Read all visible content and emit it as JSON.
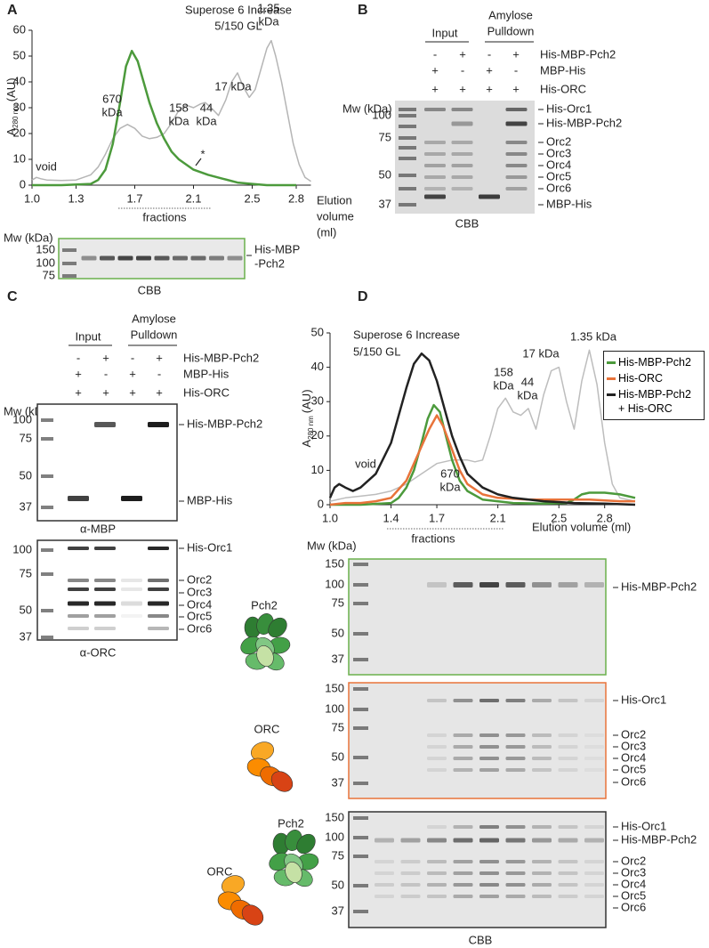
{
  "panel_labels": [
    "A",
    "B",
    "C",
    "D"
  ],
  "chart_data": [
    {
      "type": "line",
      "title": [
        "Superose 6 Increase",
        "5/150 GL"
      ],
      "ylabel": {
        "main": "A",
        "sub": "280 nm",
        "unit": "(AU)"
      },
      "xlabel": [
        "Elution",
        "volume",
        "(ml)"
      ],
      "xlim": [
        1.0,
        2.9
      ],
      "ylim": [
        0,
        60
      ],
      "xticks": [
        {
          "value": 1.0,
          "label": "1.0"
        },
        1.3,
        1.7,
        2.1,
        2.5,
        2.8
      ],
      "yticks": [
        0,
        10,
        20,
        30,
        40,
        50,
        60
      ],
      "annotations": [
        [
          "void"
        ],
        [
          "670",
          "kDa"
        ],
        [
          "158",
          "kDa"
        ],
        [
          "44",
          "kDa"
        ],
        [
          "17 kDa"
        ],
        [
          "1.35",
          "kDa"
        ],
        [
          "*"
        ]
      ],
      "fractions_label": "fractions",
      "series": [
        {
          "color": "#b5b5b5",
          "x": [
            1.0,
            1.03,
            1.06,
            1.1,
            1.2,
            1.3,
            1.4,
            1.45,
            1.5,
            1.55,
            1.6,
            1.65,
            1.7,
            1.75,
            1.8,
            1.85,
            1.9,
            1.95,
            2.0,
            2.05,
            2.1,
            2.15,
            2.18,
            2.22,
            2.27,
            2.32,
            2.36,
            2.4,
            2.44,
            2.48,
            2.52,
            2.56,
            2.6,
            2.63,
            2.66,
            2.7,
            2.74,
            2.78,
            2.82,
            2.86,
            2.9
          ],
          "values": [
            2,
            3,
            2.5,
            2,
            1.8,
            2,
            4,
            7,
            12,
            18,
            22,
            23.5,
            22,
            19,
            18,
            18.5,
            20,
            24,
            29,
            31,
            30,
            31.5,
            32,
            30,
            27,
            33,
            40,
            43.5,
            38,
            34,
            37,
            45,
            53,
            56,
            50,
            40,
            28,
            16,
            8,
            3,
            1.5
          ]
        },
        {
          "color": "#4c9a3c",
          "x": [
            1.0,
            1.2,
            1.4,
            1.45,
            1.5,
            1.55,
            1.6,
            1.64,
            1.68,
            1.72,
            1.76,
            1.8,
            1.85,
            1.9,
            1.95,
            2.0,
            2.1,
            2.2,
            2.3,
            2.4,
            2.5,
            2.6,
            2.8
          ],
          "values": [
            0,
            0,
            0.5,
            2,
            6,
            16,
            32,
            46,
            52,
            48,
            40,
            32,
            24,
            18,
            13,
            10,
            6,
            4,
            2.5,
            1,
            0.5,
            0,
            0
          ]
        }
      ]
    },
    {
      "type": "line",
      "title": [
        "Superose 6 Increase",
        "5/150 GL"
      ],
      "ylabel": {
        "main": "A",
        "sub": "280 nm",
        "unit": "(AU)"
      },
      "xlabel": [
        "Elution volume (ml)"
      ],
      "xlim": [
        1.0,
        3.0
      ],
      "ylim": [
        0,
        50
      ],
      "xticks": [
        {
          "value": 1.0,
          "label": "1.0"
        },
        1.4,
        1.7,
        2.1,
        2.5,
        2.8
      ],
      "yticks": [
        0,
        10,
        20,
        30,
        40,
        50
      ],
      "annotations": [
        [
          "void"
        ],
        [
          "670",
          "kDa"
        ],
        [
          "158",
          "kDa"
        ],
        [
          "44",
          "kDa"
        ],
        [
          "17 kDa"
        ],
        [
          "1.35 kDa"
        ]
      ],
      "fractions_label": "fractions",
      "legend": "top-right",
      "series": [
        {
          "color": "#bdbdbd",
          "x": [
            1.0,
            1.1,
            1.2,
            1.3,
            1.4,
            1.5,
            1.6,
            1.7,
            1.8,
            1.9,
            1.95,
            2.0,
            2.05,
            2.1,
            2.15,
            2.2,
            2.25,
            2.3,
            2.35,
            2.4,
            2.45,
            2.5,
            2.55,
            2.6,
            2.65,
            2.7,
            2.75,
            2.8,
            2.85,
            2.9,
            3.0
          ],
          "values": [
            1,
            2,
            2.5,
            3,
            4,
            6,
            9,
            12,
            13,
            13,
            12.5,
            13,
            20,
            28,
            31,
            27,
            26,
            28,
            22,
            32,
            39,
            40,
            30,
            22,
            36,
            45,
            35,
            18,
            6,
            2,
            1
          ]
        },
        {
          "name": "His-MBP-Pch2",
          "color": "#4c9a3c",
          "x": [
            1.0,
            1.2,
            1.4,
            1.45,
            1.5,
            1.55,
            1.6,
            1.64,
            1.68,
            1.72,
            1.76,
            1.8,
            1.85,
            1.9,
            2.0,
            2.2,
            2.4,
            2.55,
            2.6,
            2.65,
            2.7,
            2.8,
            2.9,
            3.0
          ],
          "values": [
            0,
            0,
            0.5,
            2,
            5,
            10,
            18,
            25,
            29,
            27,
            20,
            13,
            7,
            4,
            1.5,
            0.5,
            0.3,
            0.5,
            1.5,
            3,
            3.5,
            3.5,
            3,
            2
          ]
        },
        {
          "name": "His-ORC",
          "color": "#e8733a",
          "x": [
            1.0,
            1.1,
            1.2,
            1.3,
            1.4,
            1.5,
            1.55,
            1.6,
            1.65,
            1.7,
            1.74,
            1.8,
            1.85,
            1.9,
            2.0,
            2.1,
            2.3,
            2.5,
            2.7,
            2.9,
            3.0
          ],
          "values": [
            0,
            0.5,
            0.5,
            1,
            2,
            7,
            12,
            17,
            22,
            26,
            23,
            16,
            10,
            6,
            3,
            2,
            1.5,
            1.5,
            1.5,
            1,
            1
          ]
        },
        {
          "name": "His-MBP-Pch2 + His-ORC",
          "color": "#222222",
          "x": [
            1.0,
            1.03,
            1.06,
            1.1,
            1.15,
            1.2,
            1.3,
            1.4,
            1.45,
            1.5,
            1.55,
            1.6,
            1.65,
            1.7,
            1.75,
            1.8,
            1.85,
            1.9,
            2.0,
            2.1,
            2.2,
            2.4,
            2.6,
            2.8,
            3.0
          ],
          "values": [
            2,
            5,
            6,
            5,
            4,
            5,
            9,
            18,
            26,
            34,
            41,
            44,
            42,
            36,
            28,
            20,
            14,
            9,
            5,
            3,
            2,
            1,
            0.5,
            0.3,
            0
          ]
        }
      ]
    }
  ],
  "gel_A": {
    "mw": "Mw (kDa)",
    "markers": [
      150,
      100,
      75
    ],
    "labels": [
      "His-MBP",
      "-Pch2"
    ],
    "caption": "CBB"
  },
  "panel_B": {
    "input": "Input",
    "pulldown": [
      "Amylose",
      "Pulldown"
    ],
    "rows": [
      {
        "name": "His-MBP-Pch2",
        "signs": [
          "-",
          "+",
          "-",
          "+"
        ]
      },
      {
        "name": "MBP-His",
        "signs": [
          "+",
          "-",
          "+",
          "-"
        ]
      },
      {
        "name": "His-ORC",
        "signs": [
          "+",
          "+",
          "+",
          "+"
        ]
      }
    ],
    "mw": "Mw (kDa)",
    "markers": [
      100,
      75,
      50,
      37
    ],
    "labels": [
      "His-Orc1",
      "His-MBP-Pch2",
      "Orc2",
      "Orc3",
      "Orc4",
      "Orc5",
      "Orc6",
      "MBP-His"
    ],
    "caption": "CBB"
  },
  "panel_C": {
    "input": "Input",
    "pulldown": [
      "Amylose",
      "Pulldown"
    ],
    "rows": [
      {
        "name": "His-MBP-Pch2",
        "signs": [
          "-",
          "+",
          "-",
          "+"
        ]
      },
      {
        "name": "MBP-His",
        "signs": [
          "+",
          "-",
          "+",
          "-"
        ]
      },
      {
        "name": "His-ORC",
        "signs": [
          "+",
          "+",
          "+",
          "+"
        ]
      }
    ],
    "mw": "Mw (kDa)",
    "blots": [
      {
        "markers": [
          100,
          75,
          50,
          37
        ],
        "labels": [
          "His-MBP-Pch2",
          "MBP-His"
        ],
        "caption": "α-MBP"
      },
      {
        "markers": [
          100,
          75,
          50,
          37
        ],
        "labels": [
          "His-Orc1",
          "Orc2",
          "Orc3",
          "Orc4",
          "Orc5",
          "Orc6"
        ],
        "caption": "α-ORC"
      }
    ]
  },
  "panel_D_gels": {
    "mw": "Mw (kDa)",
    "gels": [
      {
        "cartoon_labels": [
          "Pch2"
        ],
        "markers": [
          150,
          100,
          75,
          50,
          37
        ],
        "labels": [
          "His-MBP-Pch2"
        ]
      },
      {
        "cartoon_labels": [
          "ORC"
        ],
        "markers": [
          150,
          100,
          75,
          50,
          37
        ],
        "labels": [
          "His-Orc1",
          "Orc2",
          "Orc3",
          "Orc4",
          "Orc5",
          "Orc6"
        ]
      },
      {
        "cartoon_labels": [
          "Pch2",
          "ORC"
        ],
        "markers": [
          150,
          100,
          75,
          50,
          37
        ],
        "labels": [
          "His-Orc1",
          "His-MBP-Pch2",
          "Orc2",
          "Orc3",
          "Orc4",
          "Orc5",
          "Orc6"
        ]
      }
    ],
    "caption": "CBB"
  }
}
